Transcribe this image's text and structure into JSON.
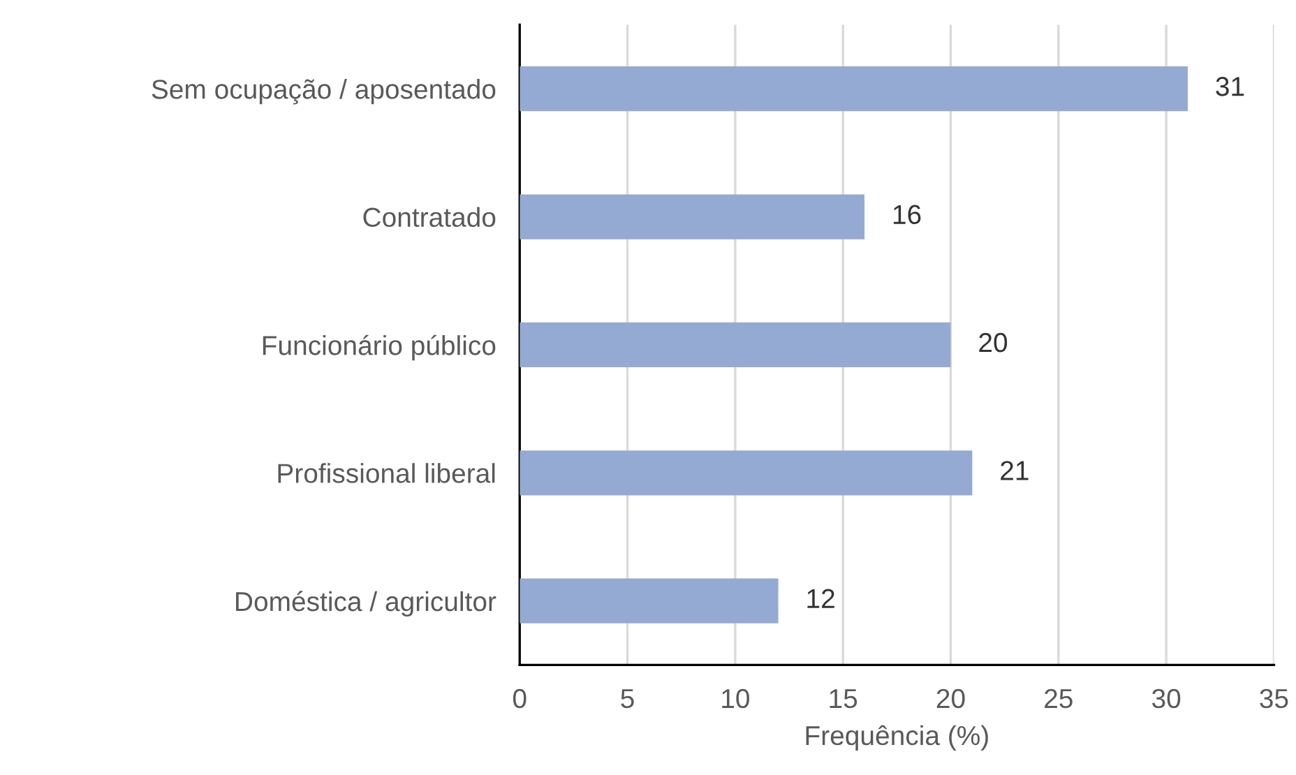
{
  "chart_data": {
    "type": "bar",
    "orientation": "horizontal",
    "xlabel": "Frequência (%)",
    "categories": [
      "Sem ocupação / aposentado",
      "Contratado",
      "Funcionário público",
      "Profissional liberal",
      "Doméstica / agricultor"
    ],
    "values": [
      31,
      16,
      20,
      21,
      12
    ],
    "color": "#95aad2",
    "xlim": [
      0,
      35
    ],
    "xticks": [
      0,
      5,
      10,
      15,
      20,
      25,
      30,
      35
    ],
    "grid": "x",
    "data_labels": true
  }
}
